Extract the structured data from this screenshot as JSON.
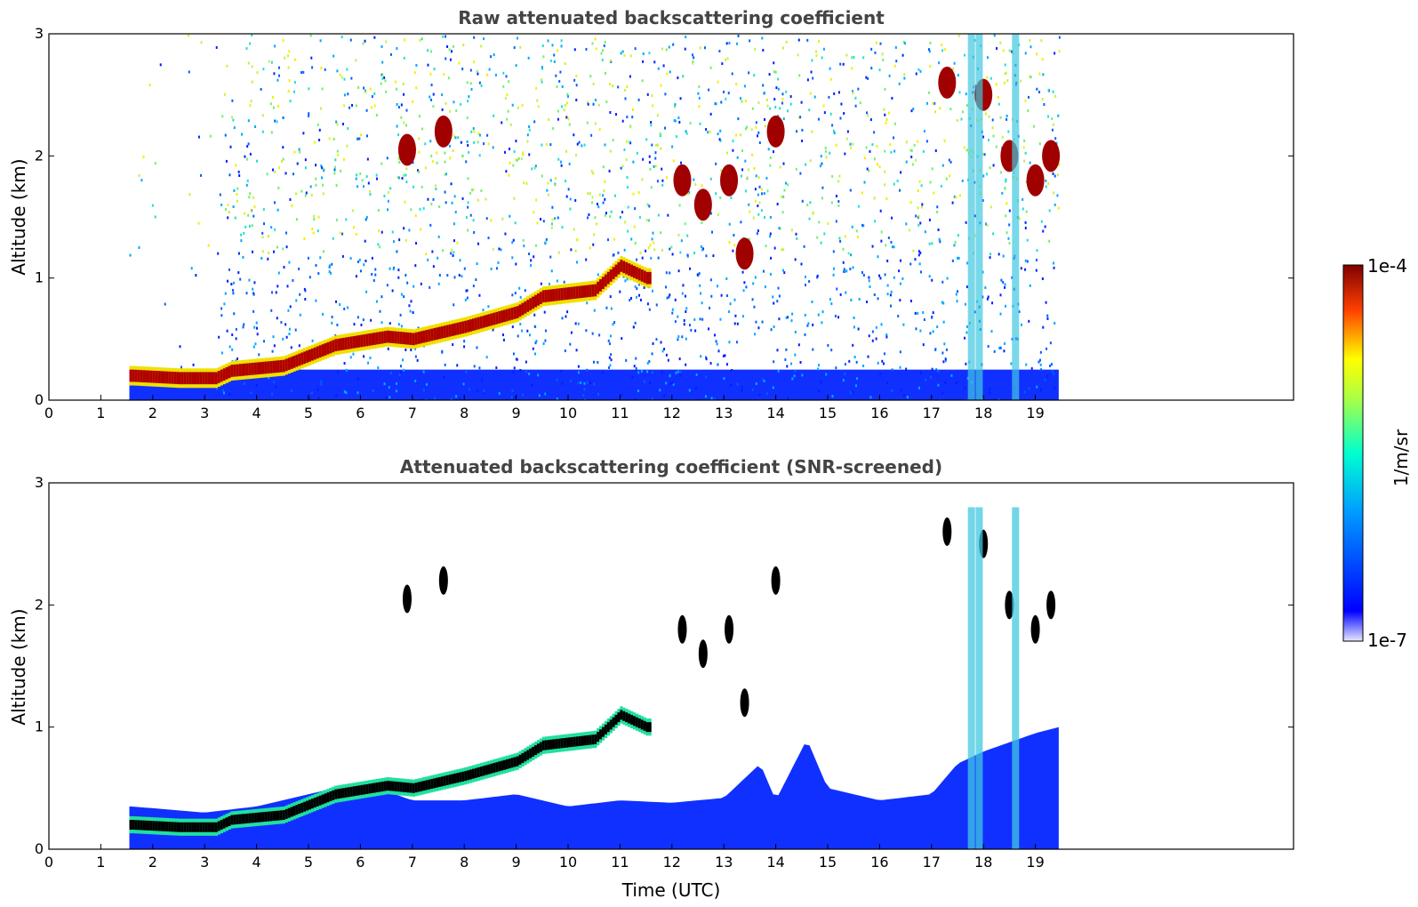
{
  "chart_data": [
    {
      "type": "heatmap",
      "title": "Raw attenuated backscattering coefficient",
      "xlabel": "",
      "ylabel": "Altitude (km)",
      "xlim": [
        0,
        24
      ],
      "ylim": [
        0,
        3
      ],
      "xticks": [
        0,
        1,
        2,
        3,
        4,
        5,
        6,
        7,
        8,
        9,
        10,
        11,
        12,
        13,
        14,
        15,
        16,
        17,
        18,
        19
      ],
      "yticks": [
        0,
        1,
        2,
        3
      ],
      "data_time_range": [
        1.55,
        19.45
      ],
      "noise_start_time": 3.3,
      "boundary_layer_top_km": [
        {
          "t": 1.6,
          "z": 0.2
        },
        {
          "t": 2.5,
          "z": 0.18
        },
        {
          "t": 3.2,
          "z": 0.18
        },
        {
          "t": 3.5,
          "z": 0.24
        },
        {
          "t": 4.5,
          "z": 0.28
        },
        {
          "t": 5.5,
          "z": 0.45
        },
        {
          "t": 6.5,
          "z": 0.52
        },
        {
          "t": 7.0,
          "z": 0.5
        },
        {
          "t": 8.0,
          "z": 0.6
        },
        {
          "t": 9.0,
          "z": 0.72
        },
        {
          "t": 9.5,
          "z": 0.85
        },
        {
          "t": 10.5,
          "z": 0.9
        },
        {
          "t": 11.0,
          "z": 1.1
        },
        {
          "t": 11.5,
          "z": 1.0
        }
      ],
      "cloud_patches": [
        {
          "t": 6.9,
          "z": 2.05
        },
        {
          "t": 7.6,
          "z": 2.2
        },
        {
          "t": 12.2,
          "z": 1.8
        },
        {
          "t": 12.6,
          "z": 1.6
        },
        {
          "t": 13.1,
          "z": 1.8
        },
        {
          "t": 13.4,
          "z": 1.2
        },
        {
          "t": 14.0,
          "z": 2.2
        },
        {
          "t": 17.3,
          "z": 2.6
        },
        {
          "t": 18.0,
          "z": 2.5
        },
        {
          "t": 18.5,
          "z": 2.0
        },
        {
          "t": 19.0,
          "z": 1.8
        },
        {
          "t": 19.3,
          "z": 2.0
        }
      ],
      "colorscale": "jet",
      "colorbar": {
        "label": "1/m/sr",
        "min_label": "1e-7",
        "max_label": "1e-4"
      }
    },
    {
      "type": "heatmap",
      "title": "Attenuated backscattering coefficient (SNR-screened)",
      "xlabel": "Time (UTC)",
      "ylabel": "Altitude (km)",
      "xlim": [
        0,
        24
      ],
      "ylim": [
        0,
        3
      ],
      "xticks": [
        0,
        1,
        2,
        3,
        4,
        5,
        6,
        7,
        8,
        9,
        10,
        11,
        12,
        13,
        14,
        15,
        16,
        17,
        18,
        19
      ],
      "yticks": [
        0,
        1,
        2,
        3
      ],
      "data_time_range": [
        1.55,
        19.45
      ],
      "screened_top_km": [
        {
          "t": 1.6,
          "z": 0.35
        },
        {
          "t": 3.0,
          "z": 0.3
        },
        {
          "t": 4.0,
          "z": 0.35
        },
        {
          "t": 5.0,
          "z": 0.45
        },
        {
          "t": 6.0,
          "z": 0.55
        },
        {
          "t": 7.0,
          "z": 0.4
        },
        {
          "t": 8.0,
          "z": 0.4
        },
        {
          "t": 9.0,
          "z": 0.45
        },
        {
          "t": 10.0,
          "z": 0.35
        },
        {
          "t": 11.0,
          "z": 0.4
        },
        {
          "t": 12.0,
          "z": 0.38
        },
        {
          "t": 13.0,
          "z": 0.42
        },
        {
          "t": 13.7,
          "z": 0.7
        },
        {
          "t": 14.0,
          "z": 0.4
        },
        {
          "t": 14.6,
          "z": 0.9
        },
        {
          "t": 15.0,
          "z": 0.5
        },
        {
          "t": 16.0,
          "z": 0.4
        },
        {
          "t": 17.0,
          "z": 0.45
        },
        {
          "t": 17.5,
          "z": 0.7
        },
        {
          "t": 18.0,
          "z": 0.8
        },
        {
          "t": 19.0,
          "z": 0.95
        },
        {
          "t": 19.45,
          "z": 1.0
        }
      ]
    }
  ]
}
